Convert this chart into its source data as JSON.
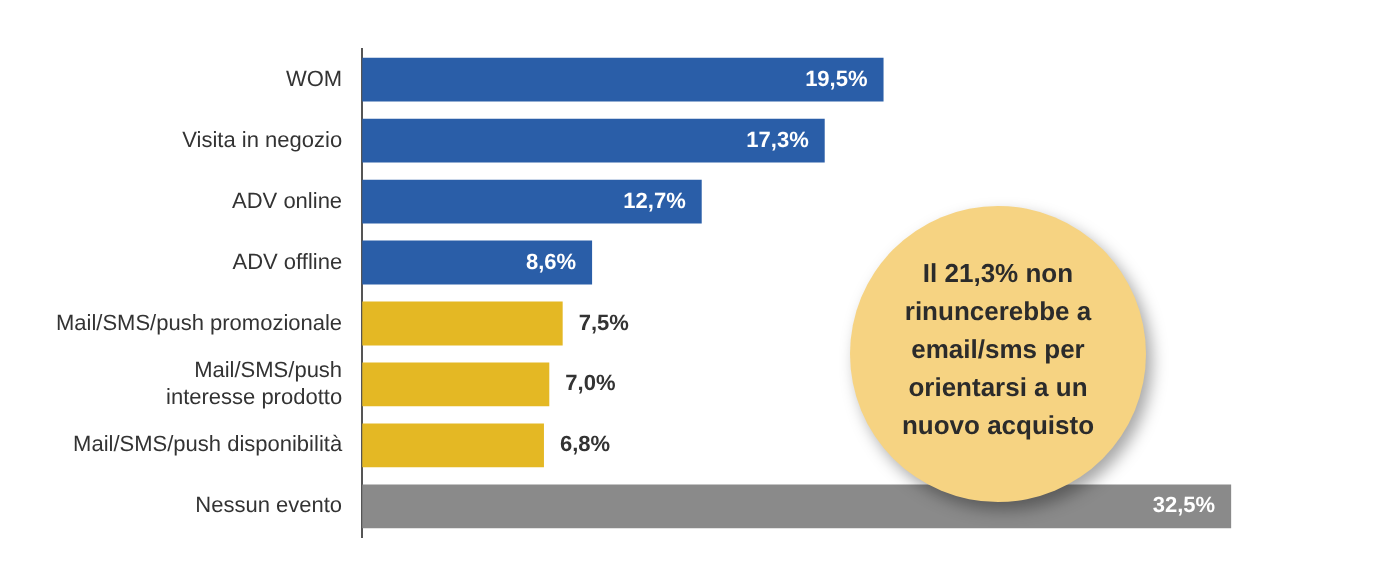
{
  "chart_data": {
    "type": "bar",
    "orientation": "horizontal",
    "categories": [
      "WOM",
      "Visita in negozio",
      "ADV online",
      "ADV offline",
      "Mail/SMS/push promozionale",
      "Mail/SMS/push interesse prodotto",
      "Mail/SMS/push disponibilità",
      "Nessun evento"
    ],
    "values": [
      19.5,
      17.3,
      12.7,
      8.6,
      7.5,
      7.0,
      6.8,
      32.5
    ],
    "colors": [
      "#2a5ea8",
      "#2a5ea8",
      "#2a5ea8",
      "#2a5ea8",
      "#e4b824",
      "#e4b824",
      "#e4b824",
      "#8a8a8a"
    ],
    "value_labels": [
      "19,5%",
      "17,3%",
      "12,7%",
      "8,6%",
      "7,5%",
      "7,0%",
      "6,8%",
      "32,5%"
    ],
    "annotations": [
      "Il 21,3% non rinuncerebbe a email/sms per orientarsi a un nuovo acquisto"
    ],
    "legend": false,
    "grid": false
  }
}
